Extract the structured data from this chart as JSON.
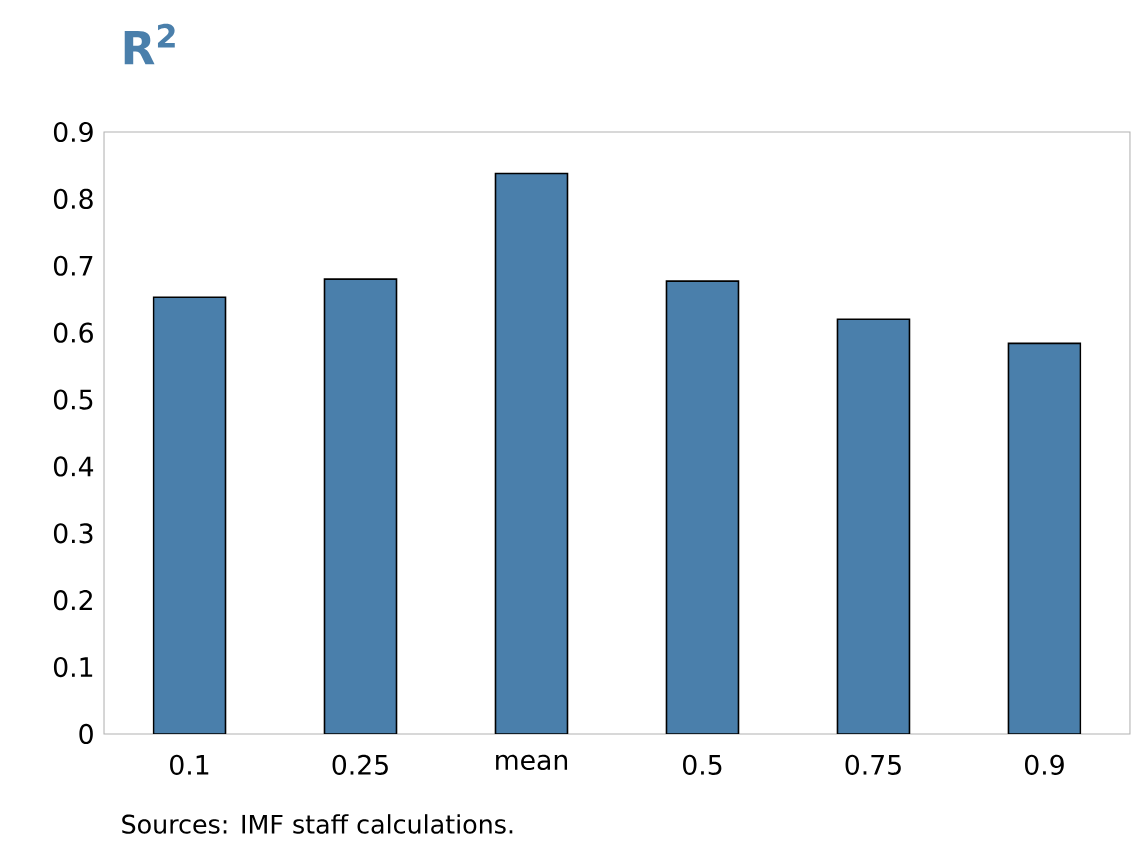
{
  "chart_data": {
    "type": "bar",
    "title": "R$^{2}$",
    "categories": [
      "0.1",
      "0.25",
      "mean",
      "0.5",
      "0.75",
      "0.9"
    ],
    "values": [
      0.653,
      0.68,
      0.838,
      0.677,
      0.62,
      0.584
    ],
    "color": "#4a7fab",
    "ylim": [
      0,
      0.9
    ],
    "yticks": [
      0,
      0.1,
      0.2,
      0.3,
      0.4,
      0.5,
      0.6,
      0.7,
      0.8,
      0.9
    ],
    "grid": false,
    "annotations": [
      "Sources: IMF staff calculations."
    ]
  }
}
